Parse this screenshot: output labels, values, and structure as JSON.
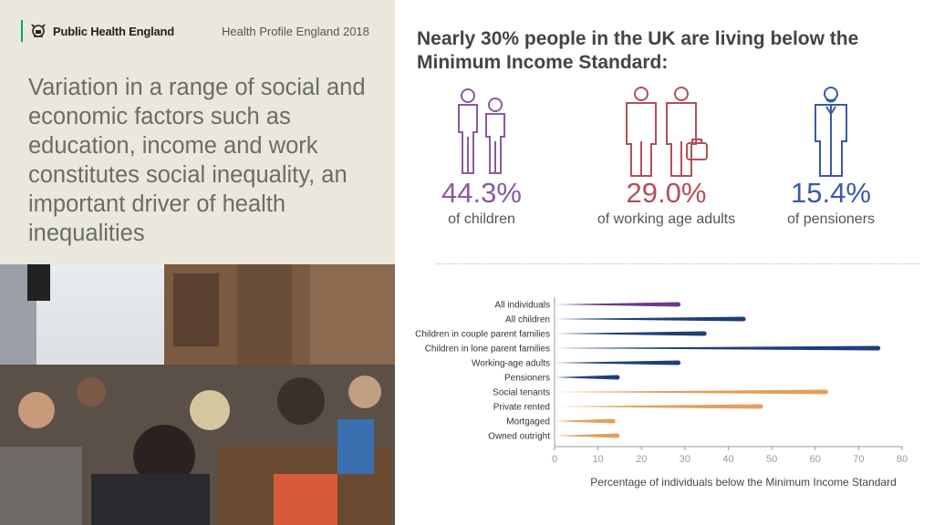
{
  "brand": {
    "name": "Public Health England",
    "report": "Health Profile England 2018"
  },
  "headline": "Variation in a range of social and economic factors such as education, income and work constitutes social inequality, an important driver of health inequalities",
  "right_title": "Nearly 30% people in the UK are living below the Minimum Income Standard:",
  "stats": [
    {
      "value": "44.3%",
      "label": "of children",
      "color": "#8a5a9e",
      "icon": "children-icon"
    },
    {
      "value": "29.0%",
      "label": "of working age adults",
      "color": "#b0505a",
      "icon": "adults-icon"
    },
    {
      "value": "15.4%",
      "label": "of pensioners",
      "color": "#3a5aa6",
      "icon": "pensioner-icon"
    }
  ],
  "chart_data": {
    "type": "bar",
    "orientation": "horizontal",
    "categories": [
      "All individuals",
      "All children",
      "Children in couple parent families",
      "Children in lone parent families",
      "Working-age adults",
      "Pensioners",
      "Social tenants",
      "Private rented",
      "Mortgaged",
      "Owned outright"
    ],
    "values": [
      29,
      44,
      35,
      75,
      29,
      15,
      63,
      48,
      14,
      15
    ],
    "colors": [
      "#6b3a8f",
      "#1f3f7a",
      "#1f3f7a",
      "#1f3f7a",
      "#1f3f7a",
      "#1f3f7a",
      "#e2a05c",
      "#e2a05c",
      "#e2a05c",
      "#e2a05c"
    ],
    "xlim": [
      0,
      80
    ],
    "xticks": [
      0,
      10,
      20,
      30,
      40,
      50,
      60,
      70,
      80
    ],
    "xlabel": "Percentage of individuals below the Minimum Income Standard",
    "grid": false
  }
}
